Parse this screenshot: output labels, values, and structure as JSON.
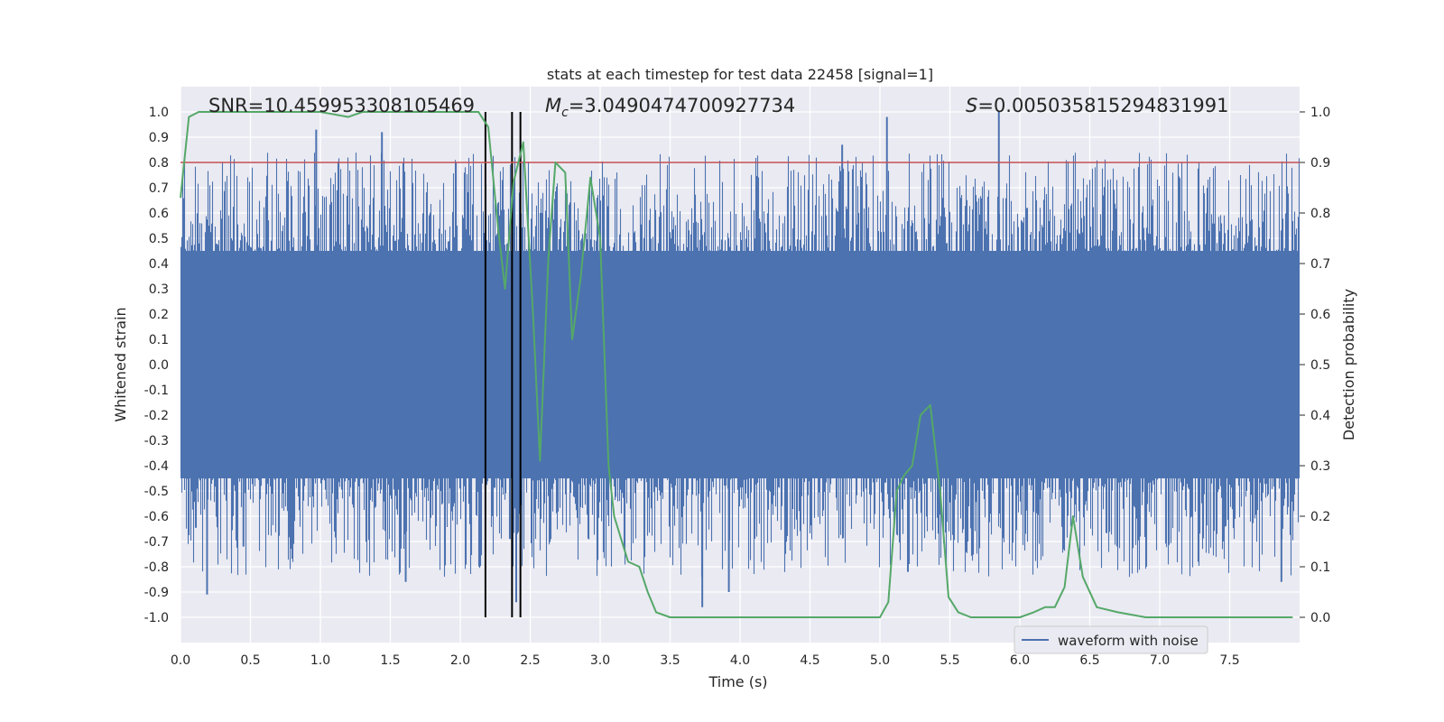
{
  "chart_data": {
    "type": "line",
    "title": "stats at each timestep for test data 22458 [signal=1]",
    "xlabel": "Time (s)",
    "ylabel": "Whitened strain",
    "y2label": "Detection probability",
    "xlim": [
      0,
      8
    ],
    "ylim": [
      -1.1,
      1.1
    ],
    "y2lim": [
      -0.05,
      1.05
    ],
    "x_ticks": [
      "0.0",
      "0.5",
      "1.0",
      "1.5",
      "2.0",
      "2.5",
      "3.0",
      "3.5",
      "4.0",
      "4.5",
      "5.0",
      "5.5",
      "6.0",
      "6.5",
      "7.0",
      "7.5"
    ],
    "y_ticks": [
      "1.0",
      "0.9",
      "0.8",
      "0.7",
      "0.6",
      "0.5",
      "0.4",
      "0.3",
      "0.2",
      "0.1",
      "0.0",
      "-0.1",
      "-0.2",
      "-0.3",
      "-0.4",
      "-0.5",
      "-0.6",
      "-0.7",
      "-0.8",
      "-0.9",
      "-1.0"
    ],
    "y2_ticks": [
      "1.0",
      "0.9",
      "0.8",
      "0.7",
      "0.6",
      "0.5",
      "0.4",
      "0.3",
      "0.2",
      "0.1",
      "0.0"
    ],
    "annotations": {
      "snr": "SNR=10.459953308105469",
      "mc_symbol": "M",
      "mc_sub": "c",
      "mc_value": "=3.0490474700927734",
      "s_symbol": "S",
      "s_value": "=0.005035815294831991"
    },
    "legend": {
      "label": "waveform with noise",
      "placement": "lower center-right"
    },
    "threshold": {
      "axis": "y2",
      "value": 0.9,
      "color": "#c44e52"
    },
    "vertical_lines": [
      2.18,
      2.37,
      2.43
    ],
    "series": [
      {
        "name": "waveform with noise",
        "axis": "y",
        "color": "#4c72b0",
        "kind": "noise-band",
        "band_core": [
          -0.45,
          0.45
        ],
        "notable_peaks": [
          {
            "x": 0.19,
            "y": -0.91
          },
          {
            "x": 0.45,
            "y": -0.72
          },
          {
            "x": 0.97,
            "y": 0.93
          },
          {
            "x": 1.44,
            "y": 0.92
          },
          {
            "x": 1.61,
            "y": -0.86
          },
          {
            "x": 2.4,
            "y": -0.94
          },
          {
            "x": 3.73,
            "y": -0.96
          },
          {
            "x": 3.92,
            "y": -0.9
          },
          {
            "x": 4.73,
            "y": 0.87
          },
          {
            "x": 5.05,
            "y": 0.98
          },
          {
            "x": 5.2,
            "y": -0.82
          },
          {
            "x": 5.85,
            "y": 1.0
          },
          {
            "x": 7.87,
            "y": -0.86
          }
        ]
      },
      {
        "name": "Detection probability",
        "axis": "y2",
        "color": "#55a868",
        "x": [
          0.0,
          0.06,
          0.13,
          0.2,
          0.3,
          0.5,
          0.8,
          1.0,
          1.2,
          1.3,
          1.6,
          1.8,
          2.0,
          2.13,
          2.2,
          2.27,
          2.32,
          2.38,
          2.45,
          2.52,
          2.57,
          2.63,
          2.68,
          2.75,
          2.8,
          2.86,
          2.93,
          3.0,
          3.06,
          3.1,
          3.2,
          3.28,
          3.34,
          3.4,
          3.5,
          3.7,
          4.0,
          4.3,
          4.6,
          5.0,
          5.06,
          5.12,
          5.17,
          5.23,
          5.29,
          5.36,
          5.43,
          5.49,
          5.56,
          5.65,
          5.8,
          6.0,
          6.1,
          6.18,
          6.25,
          6.32,
          6.38,
          6.45,
          6.55,
          6.7,
          6.9,
          7.1,
          7.3,
          7.5,
          7.7,
          7.95
        ],
        "y": [
          0.83,
          0.99,
          1.0,
          1.0,
          1.0,
          1.0,
          1.0,
          1.0,
          0.99,
          1.0,
          1.0,
          1.0,
          1.0,
          1.0,
          0.97,
          0.77,
          0.65,
          0.86,
          0.94,
          0.6,
          0.31,
          0.71,
          0.9,
          0.88,
          0.55,
          0.67,
          0.87,
          0.75,
          0.3,
          0.2,
          0.11,
          0.1,
          0.05,
          0.01,
          0.0,
          0.0,
          0.0,
          0.0,
          0.0,
          0.0,
          0.03,
          0.25,
          0.28,
          0.3,
          0.4,
          0.42,
          0.25,
          0.04,
          0.01,
          0.0,
          0.0,
          0.0,
          0.01,
          0.02,
          0.02,
          0.06,
          0.2,
          0.08,
          0.02,
          0.01,
          0.0,
          0.0,
          0.0,
          0.0,
          0.0,
          0.0
        ]
      }
    ]
  }
}
